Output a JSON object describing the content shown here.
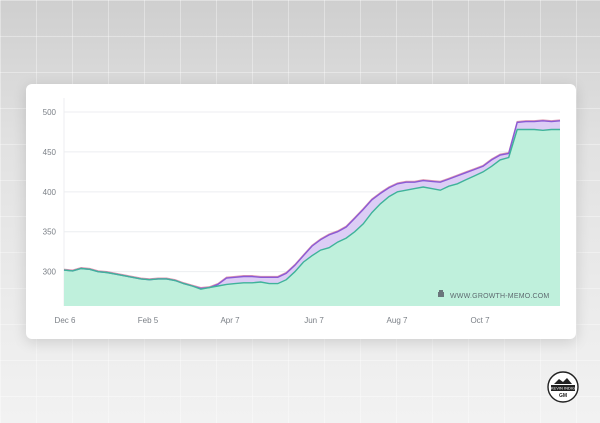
{
  "chart_data": {
    "type": "area",
    "title": "",
    "xlabel": "",
    "ylabel": "",
    "ylim": [
      257,
      510
    ],
    "x_tick_labels": [
      "Dec 6",
      "Feb 5",
      "Apr 7",
      "Jun 7",
      "Aug 7",
      "Oct 7"
    ],
    "y_ticks": [
      300,
      350,
      400,
      450,
      500
    ],
    "grid": true,
    "colors": {
      "upper": "#8a5ad6",
      "lower": "#3fb39a",
      "fill_lower": "#bff0dc",
      "fill_gap": "#dccdf5",
      "top_edge": "#c8547a"
    },
    "series": [
      {
        "values": [
          302,
          301,
          304,
          303,
          300,
          299,
          297,
          295,
          293,
          291,
          290,
          291,
          291,
          289,
          285,
          282,
          279,
          280,
          284,
          292,
          293,
          294,
          294,
          293,
          293,
          293,
          298,
          308,
          320,
          332,
          340,
          346,
          350,
          356,
          367,
          378,
          390,
          398,
          405,
          410,
          412,
          412,
          414,
          413,
          412,
          416,
          420,
          424,
          428,
          432,
          440,
          446,
          448,
          487,
          488,
          488,
          489,
          488,
          489
        ]
      },
      {
        "values": [
          302,
          301,
          304,
          303,
          300,
          299,
          297,
          295,
          293,
          291,
          290,
          291,
          291,
          289,
          285,
          282,
          278,
          280,
          282,
          284,
          285,
          286,
          286,
          287,
          285,
          285,
          290,
          300,
          312,
          320,
          327,
          330,
          337,
          342,
          350,
          360,
          374,
          385,
          394,
          400,
          402,
          404,
          406,
          404,
          402,
          407,
          410,
          415,
          420,
          425,
          432,
          440,
          443,
          478,
          478,
          478,
          477,
          478,
          478
        ]
      }
    ],
    "watermark": "WWW.GROWTH-MEMO.COM"
  },
  "badge": {
    "text": "KEVIN INDIG",
    "subtext": "GM"
  }
}
